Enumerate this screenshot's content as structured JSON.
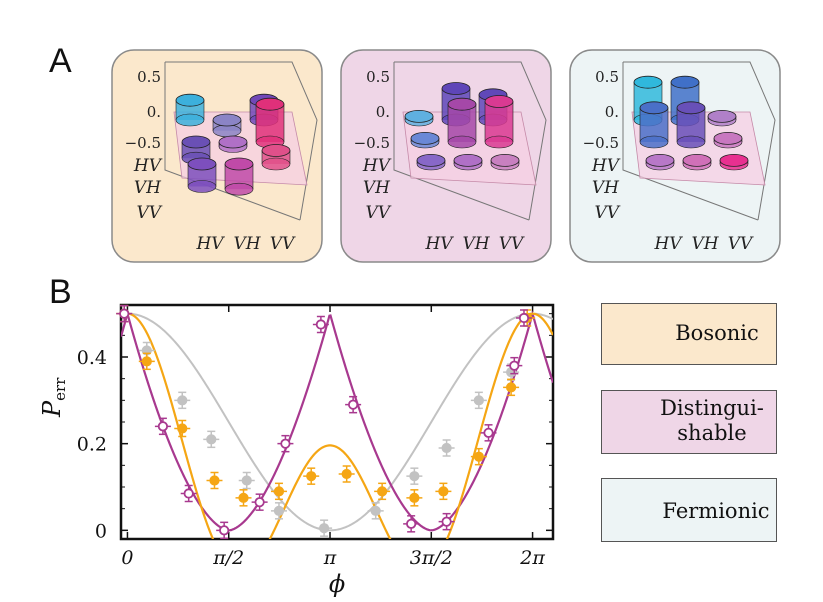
{
  "panel_labels": {
    "a": "A",
    "b": "B"
  },
  "colors": {
    "bosonic": "#f5a614",
    "distinguishable": "#a8398f",
    "fermionic": "#c2c2c2",
    "bosonic_bg": "#fbe8cc",
    "distinguishable_bg": "#efd6e7",
    "fermionic_bg": "#edf4f5"
  },
  "density_plots": {
    "z_tick_labels": [
      "0.5",
      "0.",
      "−0.5"
    ],
    "row_labels": [
      "HV",
      "VH",
      "VV"
    ],
    "col_labels": [
      "HV",
      "VH",
      "VV"
    ]
  },
  "chart_data": {
    "type": "line",
    "ylabel_main": "P",
    "ylabel_sub": "err",
    "xlabel": "ϕ",
    "xlim": [
      -0.1,
      6.6
    ],
    "ylim": [
      -0.02,
      0.52
    ],
    "x_ticks": [
      0,
      1.5708,
      3.1416,
      4.7124,
      6.2832
    ],
    "x_tick_labels": [
      "0",
      "π/2",
      "π",
      "3π/2",
      "2π"
    ],
    "y_ticks": [
      0,
      0.2,
      0.4
    ],
    "y_tick_labels": [
      "0",
      "0.2",
      "0.4"
    ],
    "legend": [
      "Bosonic",
      "Distingui-\nshable",
      "Fermionic"
    ],
    "series": [
      {
        "name": "Bosonic",
        "marker": "filled-circle",
        "x": [
          -0.05,
          0.3,
          0.85,
          1.35,
          1.8,
          2.35,
          2.85,
          3.4,
          3.95,
          4.45,
          4.9,
          5.45,
          5.95,
          6.2
        ],
        "y": [
          0.5,
          0.39,
          0.235,
          0.115,
          0.075,
          0.09,
          0.125,
          0.13,
          0.09,
          0.075,
          0.09,
          0.17,
          0.33,
          0.49
        ]
      },
      {
        "name": "Distinguishable",
        "marker": "open-circle",
        "x": [
          -0.05,
          0.55,
          0.95,
          1.5,
          2.05,
          2.45,
          3.0,
          3.5,
          4.4,
          4.95,
          5.6,
          6.0,
          6.15
        ],
        "y": [
          0.5,
          0.24,
          0.085,
          0.0,
          0.065,
          0.2,
          0.475,
          0.29,
          0.015,
          0.02,
          0.225,
          0.38,
          0.49
        ]
      },
      {
        "name": "Fermionic",
        "marker": "filled-circle",
        "x": [
          -0.05,
          0.3,
          0.85,
          1.3,
          1.85,
          2.35,
          3.05,
          3.85,
          4.45,
          4.95,
          5.45,
          5.95
        ],
        "y": [
          0.5,
          0.415,
          0.3,
          0.21,
          0.115,
          0.045,
          0.005,
          0.045,
          0.125,
          0.19,
          0.3,
          0.365
        ]
      }
    ]
  }
}
